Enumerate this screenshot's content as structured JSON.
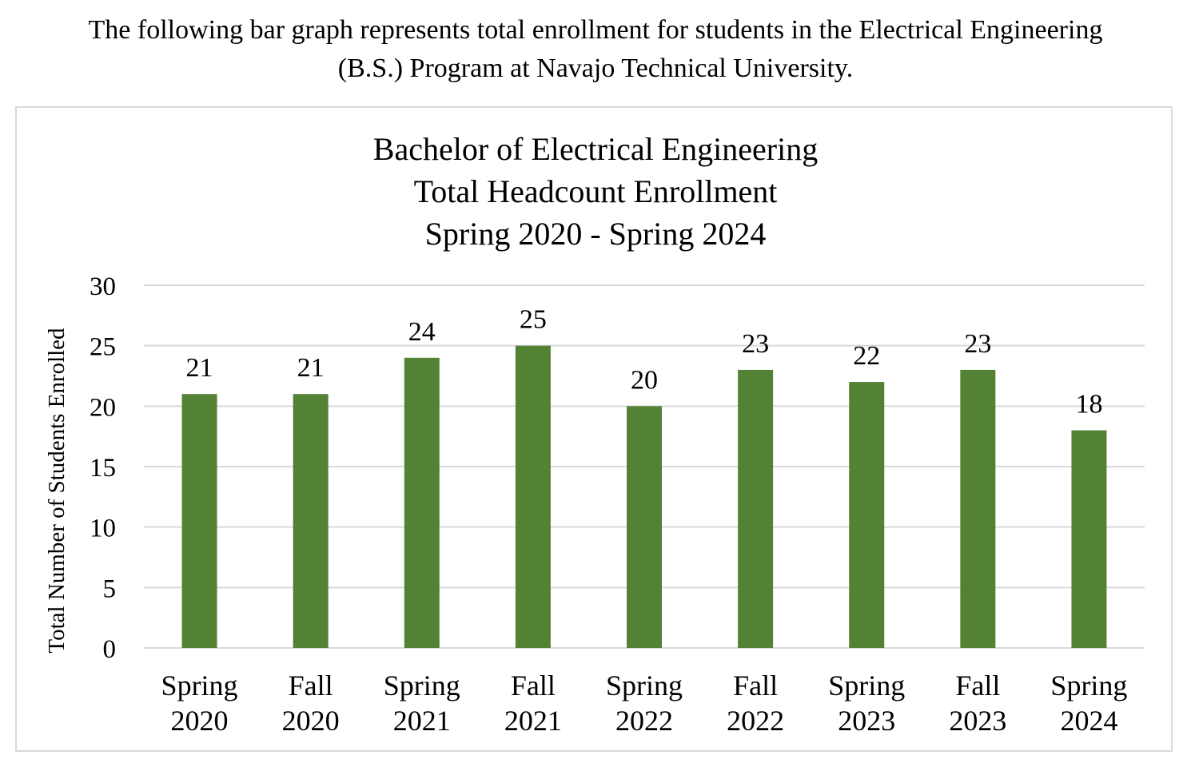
{
  "intro": {
    "line1": "The following bar graph represents total enrollment for students in the Electrical Engineering",
    "line2": "(B.S.) Program at Navajo Technical University."
  },
  "chart_data": {
    "type": "bar",
    "title": [
      "Bachelor of Electrical  Engineering",
      "Total Headcount Enrollment",
      "Spring 2020 - Spring 2024"
    ],
    "xlabel": "",
    "ylabel": "Total Number of Students Enrolled",
    "categories": [
      [
        "Spring",
        "2020"
      ],
      [
        "Fall",
        "2020"
      ],
      [
        "Spring",
        "2021"
      ],
      [
        "Fall",
        "2021"
      ],
      [
        "Spring",
        "2022"
      ],
      [
        "Fall",
        "2022"
      ],
      [
        "Spring",
        "2023"
      ],
      [
        "Fall",
        "2023"
      ],
      [
        "Spring",
        "2024"
      ]
    ],
    "values": [
      21,
      21,
      24,
      25,
      20,
      23,
      22,
      23,
      18
    ],
    "ylim": [
      0,
      30
    ],
    "yticks": [
      0,
      5,
      10,
      15,
      20,
      25,
      30
    ],
    "grid": true,
    "data_labels": true,
    "colors": {
      "bar": "#548235",
      "grid": "#d9d9d9"
    }
  }
}
